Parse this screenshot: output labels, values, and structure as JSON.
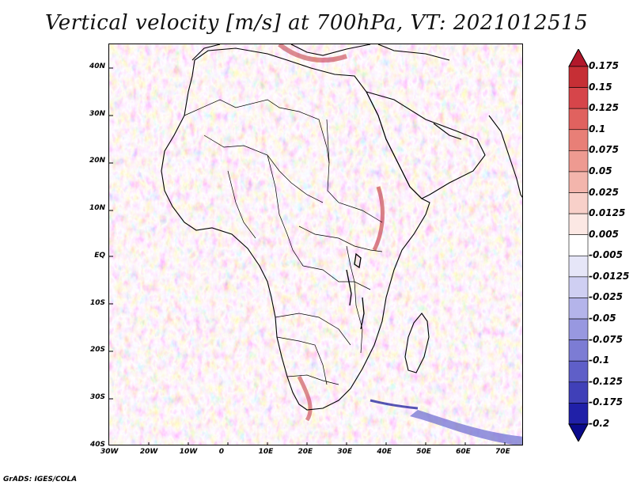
{
  "title": "Vertical velocity [m/s] at 700hPa, VT: 2021012515",
  "credit": "GrADS: IGES/COLA",
  "map": {
    "lon_range": [
      -30,
      75
    ],
    "lat_range": [
      -40,
      45
    ],
    "x_ticks": [
      "30W",
      "20W",
      "10W",
      "0",
      "10E",
      "20E",
      "30E",
      "40E",
      "50E",
      "60E",
      "70E"
    ],
    "y_ticks": [
      "40N",
      "30N",
      "20N",
      "10N",
      "EQ",
      "10S",
      "20S",
      "30S",
      "40S"
    ],
    "x_tick_values": [
      -30,
      -20,
      -10,
      0,
      10,
      20,
      30,
      40,
      50,
      60,
      70
    ],
    "y_tick_values": [
      40,
      30,
      20,
      10,
      0,
      -10,
      -20,
      -30,
      -40
    ]
  },
  "colorbar": {
    "labels": [
      "0.175",
      "0.15",
      "0.125",
      "0.1",
      "0.075",
      "0.05",
      "0.025",
      "0.0125",
      "0.005",
      "-0.005",
      "-0.0125",
      "-0.025",
      "-0.05",
      "-0.075",
      "-0.1",
      "-0.125",
      "-0.175",
      "-0.2"
    ],
    "colors": [
      "#b2182b",
      "#c62f35",
      "#d6454a",
      "#e0625f",
      "#e87f77",
      "#ee9a91",
      "#f3b5ac",
      "#f8d0c9",
      "#fce8e4",
      "#ffffff",
      "#e6e6f8",
      "#cfcff2",
      "#b4b4ea",
      "#9898e0",
      "#7c7cd4",
      "#5f5fc8",
      "#4040b8",
      "#2020a8",
      "#0a0a8c"
    ]
  }
}
